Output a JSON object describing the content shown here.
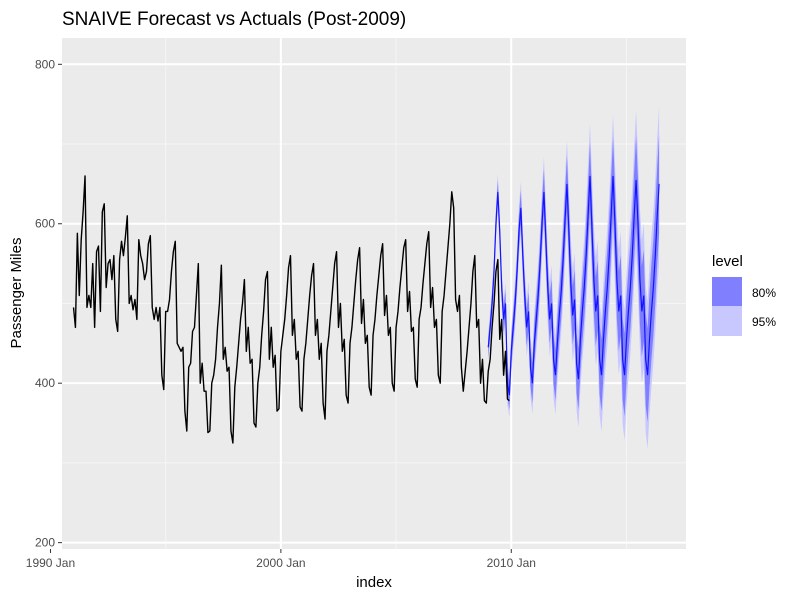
{
  "chart_data": {
    "type": "line",
    "title": "SNAIVE Forecast vs Actuals (Post-2009)",
    "xlabel": "index",
    "ylabel": "Passenger Miles",
    "x_ticks": [
      "1990 Jan",
      "2000 Jan",
      "2010 Jan"
    ],
    "y_ticks": [
      200,
      400,
      600,
      800
    ],
    "xlim": [
      "1990-07",
      "2017-08"
    ],
    "ylim": [
      192,
      833
    ],
    "grid": true,
    "legend": {
      "title": "level",
      "position": "right",
      "entries": [
        {
          "label": "80%",
          "color": "#8080ff"
        },
        {
          "label": "95%",
          "color": "#c8c8ff"
        }
      ]
    },
    "colors": {
      "panel": "#ebebeb",
      "grid_major": "#ffffff",
      "actual_line": "#000000",
      "forecast_line": "#0000ff",
      "band80": "#8080ff",
      "band95": "#c8c8ff"
    },
    "series": [
      {
        "name": "actual",
        "start": "1991-01",
        "frequency": "monthly",
        "values": [
          495,
          470,
          588,
          510,
          580,
          615,
          660,
          495,
          510,
          495,
          550,
          470,
          565,
          572,
          490,
          615,
          625,
          520,
          550,
          555,
          530,
          560,
          480,
          465,
          555,
          578,
          560,
          583,
          610,
          500,
          510,
          492,
          505,
          480,
          580,
          560,
          550,
          530,
          540,
          575,
          585,
          495,
          480,
          495,
          478,
          495,
          410,
          392,
          490,
          490,
          505,
          540,
          565,
          578,
          450,
          445,
          440,
          445,
          365,
          340,
          420,
          425,
          465,
          470,
          510,
          550,
          400,
          425,
          390,
          390,
          338,
          340,
          400,
          410,
          430,
          470,
          500,
          548,
          430,
          445,
          415,
          420,
          340,
          325,
          395,
          420,
          450,
          480,
          500,
          530,
          440,
          470,
          425,
          430,
          350,
          345,
          400,
          420,
          460,
          490,
          530,
          540,
          430,
          470,
          420,
          435,
          365,
          368,
          440,
          460,
          480,
          510,
          545,
          560,
          460,
          480,
          430,
          440,
          370,
          365,
          430,
          450,
          480,
          510,
          535,
          550,
          460,
          480,
          430,
          450,
          375,
          355,
          440,
          460,
          490,
          520,
          550,
          565,
          470,
          500,
          440,
          455,
          385,
          375,
          450,
          470,
          500,
          530,
          555,
          570,
          475,
          505,
          450,
          460,
          395,
          385,
          460,
          480,
          510,
          535,
          560,
          575,
          485,
          510,
          460,
          470,
          400,
          390,
          470,
          490,
          520,
          545,
          570,
          580,
          490,
          515,
          465,
          470,
          405,
          395,
          480,
          495,
          525,
          550,
          575,
          590,
          495,
          520,
          470,
          480,
          410,
          400,
          490,
          510,
          540,
          570,
          600,
          640,
          620,
          505,
          490,
          510,
          420,
          390,
          415,
          440,
          470,
          500,
          540,
          560,
          470,
          480,
          400,
          430,
          378,
          375,
          415,
          430,
          470,
          500,
          540,
          555,
          455,
          480,
          410,
          440,
          380,
          378
        ]
      },
      {
        "name": "forecast",
        "start": "2009-01",
        "frequency": "monthly",
        "period": 12,
        "values": [
          445,
          470,
          500,
          540,
          600,
          640,
          590,
          520,
          480,
          500,
          400,
          385,
          440,
          470,
          500,
          540,
          590,
          620,
          560,
          510,
          470,
          490,
          420,
          400,
          450,
          480,
          510,
          550,
          600,
          640,
          580,
          520,
          480,
          500,
          430,
          410,
          450,
          485,
          515,
          555,
          605,
          650,
          590,
          525,
          485,
          505,
          425,
          405,
          455,
          490,
          520,
          560,
          610,
          660,
          595,
          530,
          490,
          510,
          430,
          410,
          455,
          490,
          520,
          560,
          610,
          660,
          600,
          530,
          490,
          510,
          430,
          410,
          455,
          490,
          520,
          560,
          610,
          655,
          600,
          530,
          490,
          510,
          430,
          410,
          455,
          490,
          520,
          560,
          610,
          650
        ]
      }
    ],
    "band_growth": {
      "band80_start": 12,
      "band80_end": 62,
      "band95_start": 18,
      "band95_end": 98
    }
  }
}
